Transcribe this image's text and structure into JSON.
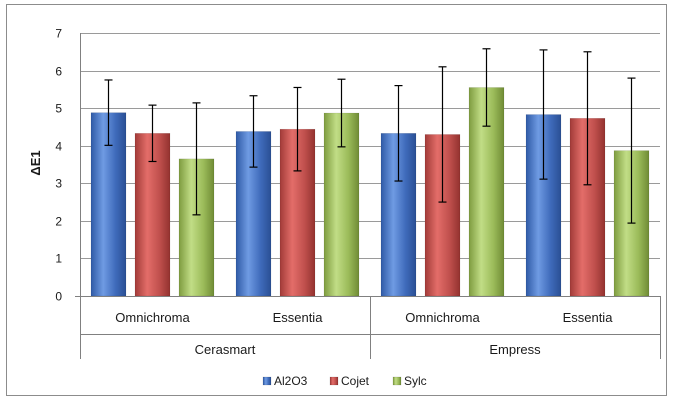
{
  "chart_data": {
    "type": "bar",
    "title": "",
    "xlabel": "",
    "ylabel": "ΔE1",
    "ylim": [
      0,
      7
    ],
    "yticks": [
      0,
      1,
      2,
      3,
      4,
      5,
      6,
      7
    ],
    "grid": true,
    "legend_position": "bottom",
    "groups": [
      {
        "label": "Cerasmart",
        "categories": [
          "Omnichroma",
          "Essentia"
        ]
      },
      {
        "label": "Empress",
        "categories": [
          "Omnichroma",
          "Essentia"
        ]
      }
    ],
    "categories": [
      "Cerasmart Omnichroma",
      "Cerasmart Essentia",
      "Empress Omnichroma",
      "Empress Essentia"
    ],
    "series": [
      {
        "name": "Al2O3",
        "color": "#4472C4",
        "values": [
          4.88,
          4.38,
          4.33,
          4.83
        ],
        "error": [
          0.87,
          0.95,
          1.27,
          1.72
        ]
      },
      {
        "name": "Cojet",
        "color": "#C0504D",
        "values": [
          4.33,
          4.44,
          4.3,
          4.73
        ],
        "error": [
          0.75,
          1.11,
          1.8,
          1.77
        ]
      },
      {
        "name": "Sylc",
        "color": "#9BBB59",
        "values": [
          3.65,
          4.87,
          5.55,
          3.87
        ],
        "error": [
          1.49,
          0.9,
          1.03,
          1.93
        ]
      }
    ]
  }
}
